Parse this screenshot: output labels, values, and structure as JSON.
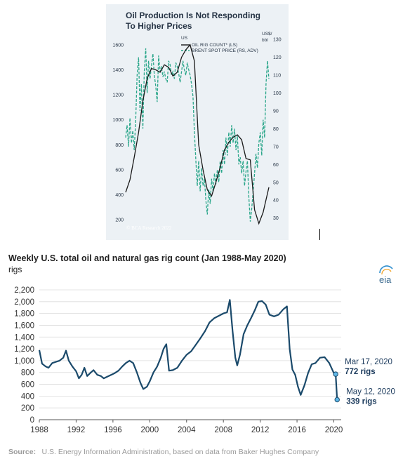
{
  "chart_data": [
    {
      "type": "line",
      "title": "Oil Production Is Not Responding\nTo Higher Prices",
      "title_line1": "Oil Production Is Not Responding",
      "title_line2": "To Higher Prices",
      "panel_label": "US",
      "left_axis": {
        "ticks": [
          200,
          400,
          600,
          800,
          1000,
          1200,
          1400,
          1600
        ],
        "range": [
          100,
          1700
        ]
      },
      "right_axis": {
        "unit_line1": "US$/",
        "unit_line2": "bbl",
        "ticks": [
          30,
          40,
          50,
          60,
          70,
          80,
          90,
          100,
          110,
          120,
          130
        ],
        "range": [
          22,
          134
        ]
      },
      "series": [
        {
          "name": "OIL RIG COUNT* (LS)",
          "axis": "left",
          "color": "#1a1a1a",
          "x": [
            0,
            3,
            6,
            9,
            12,
            15,
            18,
            21,
            24,
            27,
            30,
            33,
            36,
            39,
            42,
            45,
            48,
            51,
            54,
            57,
            60,
            63,
            66,
            69,
            72,
            75,
            78,
            81,
            84,
            87,
            90,
            93,
            96,
            100
          ],
          "values": [
            420,
            520,
            700,
            900,
            1150,
            1330,
            1410,
            1400,
            1380,
            1440,
            1420,
            1350,
            1380,
            1500,
            1560,
            1600,
            1470,
            800,
            600,
            440,
            390,
            500,
            620,
            760,
            820,
            860,
            880,
            840,
            690,
            680,
            280,
            170,
            260,
            460
          ]
        },
        {
          "name": "BRENT SPOT PRICE (RS, ADV)",
          "axis": "right",
          "color": "#2aa68a",
          "x": [
            0,
            1,
            2,
            3,
            4,
            5,
            6,
            7,
            8,
            9,
            10,
            11,
            12,
            13,
            14,
            15,
            16,
            17,
            18,
            19,
            20,
            21,
            22,
            23,
            24,
            25,
            26,
            27,
            28,
            29,
            30,
            31,
            32,
            33,
            34,
            35,
            36,
            37,
            38,
            39,
            40,
            41,
            42,
            43,
            44,
            45,
            46,
            47,
            48,
            49,
            50,
            51,
            52,
            53,
            54,
            55,
            56,
            57,
            58,
            59,
            60,
            61,
            62,
            63,
            64,
            65,
            66,
            67,
            68,
            69,
            70,
            71,
            72,
            73,
            74,
            75,
            76,
            77,
            78,
            79,
            80,
            81,
            82,
            83,
            84,
            85,
            86,
            87,
            88,
            89,
            90,
            91,
            92,
            93,
            94,
            95,
            96,
            97,
            98,
            99,
            100
          ],
          "values": [
            75,
            82,
            70,
            86,
            72,
            79,
            68,
            85,
            110,
            120,
            90,
            105,
            80,
            112,
            125,
            100,
            118,
            108,
            115,
            122,
            110,
            104,
            95,
            121,
            112,
            115,
            109,
            112,
            108,
            106,
            118,
            116,
            110,
            112,
            108,
            117,
            115,
            111,
            106,
            112,
            118,
            113,
            110,
            117,
            113,
            110,
            105,
            98,
            78,
            62,
            48,
            62,
            45,
            58,
            48,
            52,
            40,
            32,
            46,
            38,
            52,
            45,
            55,
            49,
            57,
            50,
            62,
            55,
            68,
            60,
            75,
            65,
            78,
            70,
            82,
            72,
            80,
            68,
            76,
            60,
            64,
            55,
            62,
            48,
            56,
            62,
            42,
            28,
            35,
            45,
            55,
            66,
            58,
            72,
            78,
            65,
            85,
            75,
            105,
            118,
            108
          ]
        }
      ],
      "legend_placement": "top-center",
      "source": "© BCA Research 2022"
    },
    {
      "type": "line",
      "title": "Weekly U.S. total oil and natural gas rig count (Jan 1988-May 2020)",
      "ylabel": "rigs",
      "ylim": [
        0,
        2200
      ],
      "y_ticks": [
        "0",
        "200",
        "400",
        "600",
        "800",
        "1,000",
        "1,200",
        "1,400",
        "1,600",
        "1,800",
        "2,000",
        "2,200"
      ],
      "y_tick_values": [
        0,
        200,
        400,
        600,
        800,
        1000,
        1200,
        1400,
        1600,
        1800,
        2000,
        2200
      ],
      "x_ticks": [
        "1988",
        "1992",
        "1996",
        "2000",
        "2004",
        "2008",
        "2012",
        "2016",
        "2020"
      ],
      "x_tick_values": [
        1988,
        1992,
        1996,
        2000,
        2004,
        2008,
        2012,
        2016,
        2020
      ],
      "xlim": [
        1988,
        2020.8
      ],
      "grid": "horizontal",
      "series": [
        {
          "color": "#1b4a6b",
          "x": [
            1988.0,
            1988.3,
            1988.7,
            1989.0,
            1989.4,
            1989.8,
            1990.2,
            1990.6,
            1990.9,
            1991.2,
            1991.6,
            1992.0,
            1992.3,
            1992.6,
            1992.9,
            1993.2,
            1993.6,
            1993.9,
            1994.3,
            1994.7,
            1995.0,
            1995.4,
            1995.8,
            1996.2,
            1996.6,
            1997.0,
            1997.4,
            1997.8,
            1998.2,
            1998.6,
            1999.0,
            1999.3,
            1999.7,
            2000.0,
            2000.4,
            2000.8,
            2001.2,
            2001.5,
            2001.8,
            2002.1,
            2002.5,
            2003.0,
            2003.5,
            2004.0,
            2004.5,
            2005.0,
            2005.5,
            2006.0,
            2006.5,
            2007.0,
            2007.5,
            2008.0,
            2008.4,
            2008.7,
            2009.0,
            2009.3,
            2009.5,
            2009.8,
            2010.2,
            2010.6,
            2011.0,
            2011.4,
            2011.8,
            2012.2,
            2012.6,
            2013.0,
            2013.5,
            2014.0,
            2014.5,
            2014.9,
            2015.2,
            2015.5,
            2015.8,
            2016.1,
            2016.4,
            2016.8,
            2017.2,
            2017.6,
            2018.0,
            2018.5,
            2019.0,
            2019.5,
            2020.0,
            2020.2,
            2020.36
          ],
          "values": [
            1180,
            950,
            900,
            880,
            960,
            980,
            1000,
            1050,
            1170,
            1000,
            900,
            820,
            700,
            760,
            880,
            740,
            800,
            840,
            760,
            740,
            700,
            730,
            760,
            790,
            830,
            900,
            960,
            1000,
            960,
            800,
            620,
            520,
            560,
            650,
            800,
            900,
            1050,
            1200,
            1280,
            830,
            840,
            880,
            1000,
            1100,
            1160,
            1270,
            1380,
            1500,
            1650,
            1720,
            1760,
            1800,
            1820,
            2030,
            1500,
            1050,
            920,
            1100,
            1450,
            1600,
            1720,
            1850,
            2000,
            2010,
            1950,
            1780,
            1750,
            1780,
            1870,
            1920,
            1200,
            850,
            760,
            560,
            420,
            580,
            790,
            940,
            960,
            1050,
            1060,
            960,
            790,
            772,
            339
          ]
        }
      ],
      "annotations": [
        {
          "date": "Mar 17, 2020",
          "value_label": "772 rigs",
          "x": 2020.2,
          "value": 772
        },
        {
          "date": "May 12, 2020",
          "value_label": "339 rigs",
          "x": 2020.36,
          "value": 339
        }
      ],
      "source_label": "Source:",
      "source_text": "U.S. Energy Information Administration, based on data from Baker Hughes Company",
      "logo": "eia"
    }
  ]
}
